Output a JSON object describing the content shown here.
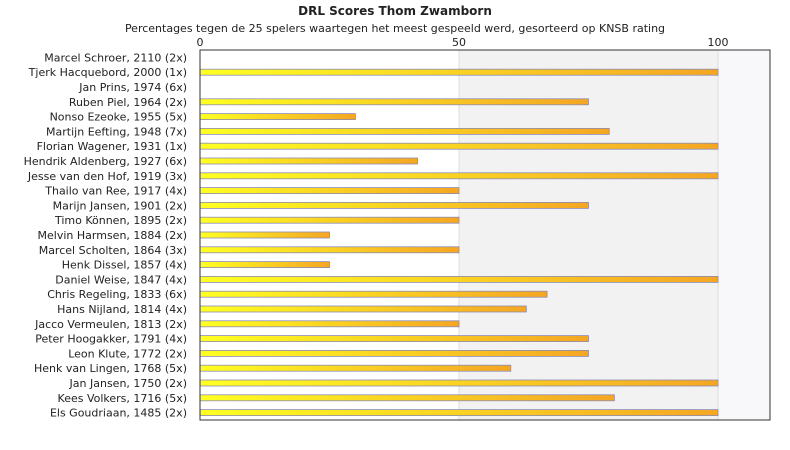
{
  "chart_data": {
    "type": "bar",
    "orientation": "horizontal",
    "title": "DRL Scores Thom Zwamborn",
    "subtitle": "Percentages tegen de 25 spelers waartegen het meest gespeeld werd, gesorteerd op KNSB rating",
    "xlim": [
      0,
      100
    ],
    "xticks": [
      0,
      50,
      100
    ],
    "grid": true,
    "categories": [
      "Marcel Schroer, 2110 (2x)",
      "Tjerk Hacquebord, 2000 (1x)",
      "Jan Prins, 1974 (6x)",
      "Ruben Piel, 1964 (2x)",
      "Nonso Ezeoke, 1955 (5x)",
      "Martijn Eefting, 1948 (7x)",
      "Florian Wagener, 1931 (1x)",
      "Hendrik Aldenberg, 1927 (6x)",
      "Jesse van den Hof, 1919 (3x)",
      "Thailo van Ree, 1917 (4x)",
      "Marijn Jansen, 1901 (2x)",
      "Timo Können, 1895 (2x)",
      "Melvin Harmsen, 1884 (2x)",
      "Marcel Scholten, 1864 (3x)",
      "Henk Dissel, 1857 (4x)",
      "Daniel Weise, 1847 (4x)",
      "Chris Regeling, 1833 (6x)",
      "Hans Nijland, 1814 (4x)",
      "Jacco Vermeulen, 1813 (2x)",
      "Peter Hoogakker, 1791 (4x)",
      "Leon Klute, 1772 (2x)",
      "Henk van Lingen, 1768 (5x)",
      "Jan Jansen, 1750 (2x)",
      "Kees Volkers, 1716 (5x)",
      "Els Goudriaan, 1485 (2x)"
    ],
    "values": [
      0,
      100,
      0,
      75,
      30,
      79,
      100,
      42,
      100,
      50,
      75,
      50,
      25,
      50,
      25,
      100,
      67,
      63,
      50,
      75,
      75,
      60,
      100,
      80,
      100
    ],
    "colors": {
      "bar_start": "#ffff22",
      "bar_end": "#f5a623",
      "bar_stroke": "#8c8cb4",
      "band_light": "#ffffff",
      "band_dark": "#f2f2f2",
      "axis": "#333333",
      "grid": "#dddddd",
      "text": "#222222"
    }
  }
}
